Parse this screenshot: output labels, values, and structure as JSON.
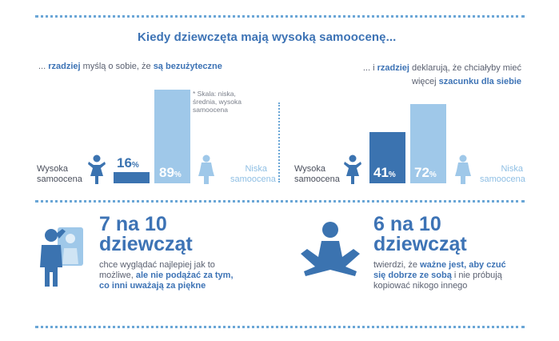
{
  "title": "Kiedy dziewczęta mają wysoką samoocenę...",
  "left": {
    "subtitle_pre": "... ",
    "subtitle_b1": "rzadziej",
    "subtitle_mid": " myślą o sobie, że ",
    "subtitle_b2": "są bezużyteczne",
    "note": "* Skala: niska, średnia, wysoka samoocena",
    "high_label": "Wysoka samoocena",
    "low_label": "Niska samoocena",
    "high_value": "16",
    "low_value": "89",
    "percent": "%"
  },
  "right": {
    "line1_pre": "... i ",
    "line1_b": "rzadziej",
    "line1_post": " deklarują, że chciałyby mieć",
    "line2_pre": "więcej ",
    "line2_b": "szacunku dla siebie",
    "high_label": "Wysoka samoocena",
    "low_label": "Niska samoocena",
    "high_value": "41",
    "low_value": "72",
    "percent": "%"
  },
  "stat1": {
    "line1": "7 na 10",
    "line2": "dziewcząt",
    "d1": "chce wyglądać najlepiej jak to",
    "d2_pre": "możliwe, ",
    "d2_b": "ale nie podążać za tym,",
    "d3_b": "co inni uważają za piękne"
  },
  "stat2": {
    "line1": "6 na 10",
    "line2": "dziewcząt",
    "d1_pre": "twierdzi, że ",
    "d1_b": "ważne jest, aby czuć",
    "d2_b": "się dobrze ze sobą",
    "d2_post": " i nie próbują",
    "d3": "kopiować nikogo innego"
  },
  "chart_data": [
    {
      "type": "bar",
      "categories": [
        "Wysoka samoocena",
        "Niska samoocena"
      ],
      "values": [
        16,
        89
      ],
      "unit": "%"
    },
    {
      "type": "bar",
      "categories": [
        "Wysoka samoocena",
        "Niska samoocena"
      ],
      "values": [
        41,
        72
      ],
      "unit": "%"
    }
  ],
  "colors": {
    "accent": "#3d73b5",
    "dark_bar": "#3b73b0",
    "light_bar": "#9fc8e9"
  }
}
